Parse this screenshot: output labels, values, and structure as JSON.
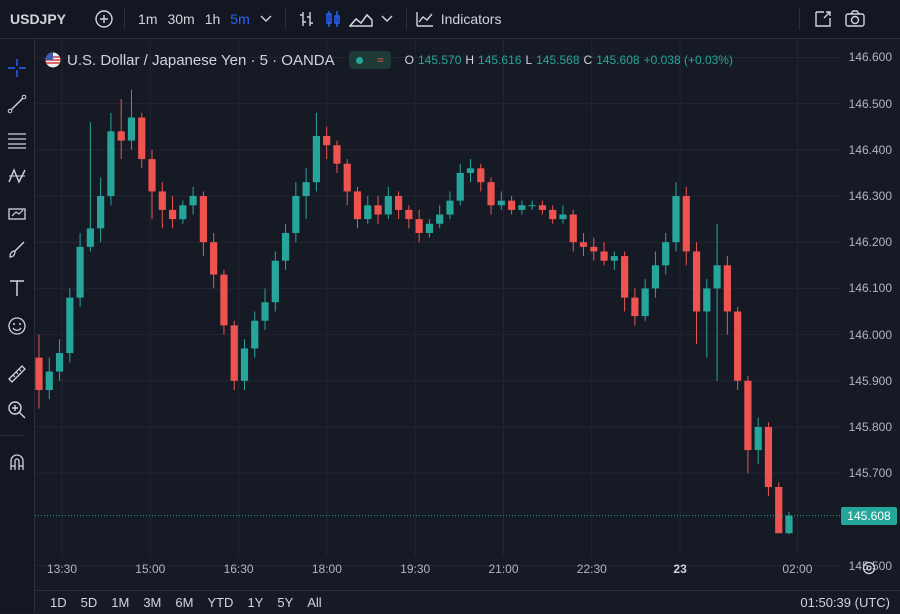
{
  "toolbar": {
    "symbol": "USDJPY",
    "intervals": [
      {
        "label": "1m",
        "active": false
      },
      {
        "label": "30m",
        "active": false
      },
      {
        "label": "1h",
        "active": false
      },
      {
        "label": "5m",
        "active": true
      }
    ],
    "indicators_label": "Indicators"
  },
  "legend": {
    "title": "U.S. Dollar / Japanese Yen · 5 · OANDA",
    "o_label": "O",
    "o_value": "145.570",
    "h_label": "H",
    "h_value": "145.616",
    "l_label": "L",
    "l_value": "145.568",
    "c_label": "C",
    "c_value": "145.608",
    "change": "+0.038 (+0.03%)"
  },
  "price_axis": {
    "ticks": [
      "146.600",
      "146.500",
      "146.400",
      "146.300",
      "146.200",
      "146.100",
      "146.000",
      "145.900",
      "145.800",
      "145.700",
      "145.500"
    ],
    "current_price": "145.608"
  },
  "time_axis": {
    "ticks": [
      {
        "label": "13:30",
        "bold": false
      },
      {
        "label": "15:00",
        "bold": false
      },
      {
        "label": "16:30",
        "bold": false
      },
      {
        "label": "18:00",
        "bold": false
      },
      {
        "label": "19:30",
        "bold": false
      },
      {
        "label": "21:00",
        "bold": false
      },
      {
        "label": "22:30",
        "bold": false
      },
      {
        "label": "23",
        "bold": true
      },
      {
        "label": "02:00",
        "bold": false
      }
    ]
  },
  "bottom": {
    "ranges": [
      "1D",
      "5D",
      "1M",
      "3M",
      "6M",
      "YTD",
      "1Y",
      "5Y",
      "All"
    ],
    "clock": "01:50:39 (UTC)"
  },
  "colors": {
    "up": "#26a69a",
    "down": "#ef5350",
    "grid": "#232632",
    "accent": "#2962ff"
  },
  "icons": {
    "toolbar": [
      "search-icon",
      "add-symbol-icon",
      "bar-style-icon",
      "candle-style-icon",
      "area-style-icon",
      "chevron-down-icon",
      "indicators-icon",
      "fullscreen-icon",
      "camera-icon"
    ],
    "left": [
      "crosshair-icon",
      "trendline-icon",
      "fib-icon",
      "pattern-icon",
      "projection-icon",
      "brush-icon",
      "text-icon",
      "emoji-icon",
      "ruler-icon",
      "zoom-icon",
      "magnet-icon"
    ]
  },
  "chart_data": {
    "type": "candlestick",
    "symbol": "USDJPY",
    "interval": "5",
    "y_range": [
      145.46,
      146.64
    ],
    "series": [
      {
        "o": 145.95,
        "h": 146.0,
        "l": 145.84,
        "c": 145.88
      },
      {
        "o": 145.88,
        "h": 145.95,
        "l": 145.86,
        "c": 145.92
      },
      {
        "o": 145.92,
        "h": 145.99,
        "l": 145.9,
        "c": 145.96
      },
      {
        "o": 145.96,
        "h": 146.1,
        "l": 145.94,
        "c": 146.08
      },
      {
        "o": 146.08,
        "h": 146.22,
        "l": 146.06,
        "c": 146.19
      },
      {
        "o": 146.19,
        "h": 146.46,
        "l": 146.18,
        "c": 146.23
      },
      {
        "o": 146.23,
        "h": 146.34,
        "l": 146.2,
        "c": 146.3
      },
      {
        "o": 146.3,
        "h": 146.48,
        "l": 146.28,
        "c": 146.44
      },
      {
        "o": 146.44,
        "h": 146.51,
        "l": 146.38,
        "c": 146.42
      },
      {
        "o": 146.42,
        "h": 146.53,
        "l": 146.4,
        "c": 146.47
      },
      {
        "o": 146.47,
        "h": 146.48,
        "l": 146.36,
        "c": 146.38
      },
      {
        "o": 146.38,
        "h": 146.4,
        "l": 146.25,
        "c": 146.31
      },
      {
        "o": 146.31,
        "h": 146.33,
        "l": 146.23,
        "c": 146.27
      },
      {
        "o": 146.27,
        "h": 146.3,
        "l": 146.23,
        "c": 146.25
      },
      {
        "o": 146.25,
        "h": 146.29,
        "l": 146.24,
        "c": 146.28
      },
      {
        "o": 146.28,
        "h": 146.32,
        "l": 146.26,
        "c": 146.3
      },
      {
        "o": 146.3,
        "h": 146.31,
        "l": 146.17,
        "c": 146.2
      },
      {
        "o": 146.2,
        "h": 146.22,
        "l": 146.1,
        "c": 146.13
      },
      {
        "o": 146.13,
        "h": 146.14,
        "l": 146.0,
        "c": 146.02
      },
      {
        "o": 146.02,
        "h": 146.03,
        "l": 145.88,
        "c": 145.9
      },
      {
        "o": 145.9,
        "h": 145.99,
        "l": 145.88,
        "c": 145.97
      },
      {
        "o": 145.97,
        "h": 146.05,
        "l": 145.95,
        "c": 146.03
      },
      {
        "o": 146.03,
        "h": 146.1,
        "l": 146.01,
        "c": 146.07
      },
      {
        "o": 146.07,
        "h": 146.18,
        "l": 146.05,
        "c": 146.16
      },
      {
        "o": 146.16,
        "h": 146.24,
        "l": 146.14,
        "c": 146.22
      },
      {
        "o": 146.22,
        "h": 146.33,
        "l": 146.2,
        "c": 146.3
      },
      {
        "o": 146.3,
        "h": 146.36,
        "l": 146.25,
        "c": 146.33
      },
      {
        "o": 146.33,
        "h": 146.48,
        "l": 146.31,
        "c": 146.43
      },
      {
        "o": 146.43,
        "h": 146.45,
        "l": 146.38,
        "c": 146.41
      },
      {
        "o": 146.41,
        "h": 146.42,
        "l": 146.35,
        "c": 146.37
      },
      {
        "o": 146.37,
        "h": 146.38,
        "l": 146.28,
        "c": 146.31
      },
      {
        "o": 146.31,
        "h": 146.32,
        "l": 146.23,
        "c": 146.25
      },
      {
        "o": 146.25,
        "h": 146.3,
        "l": 146.24,
        "c": 146.28
      },
      {
        "o": 146.28,
        "h": 146.3,
        "l": 146.24,
        "c": 146.26
      },
      {
        "o": 146.26,
        "h": 146.32,
        "l": 146.25,
        "c": 146.3
      },
      {
        "o": 146.3,
        "h": 146.31,
        "l": 146.25,
        "c": 146.27
      },
      {
        "o": 146.27,
        "h": 146.28,
        "l": 146.23,
        "c": 146.25
      },
      {
        "o": 146.25,
        "h": 146.27,
        "l": 146.2,
        "c": 146.22
      },
      {
        "o": 146.22,
        "h": 146.25,
        "l": 146.21,
        "c": 146.24
      },
      {
        "o": 146.24,
        "h": 146.28,
        "l": 146.23,
        "c": 146.26
      },
      {
        "o": 146.26,
        "h": 146.31,
        "l": 146.25,
        "c": 146.29
      },
      {
        "o": 146.29,
        "h": 146.37,
        "l": 146.28,
        "c": 146.35
      },
      {
        "o": 146.35,
        "h": 146.38,
        "l": 146.33,
        "c": 146.36
      },
      {
        "o": 146.36,
        "h": 146.37,
        "l": 146.31,
        "c": 146.33
      },
      {
        "o": 146.33,
        "h": 146.34,
        "l": 146.26,
        "c": 146.28
      },
      {
        "o": 146.28,
        "h": 146.31,
        "l": 146.27,
        "c": 146.29
      },
      {
        "o": 146.29,
        "h": 146.3,
        "l": 146.26,
        "c": 146.27
      },
      {
        "o": 146.27,
        "h": 146.29,
        "l": 146.26,
        "c": 146.28
      },
      {
        "o": 146.28,
        "h": 146.29,
        "l": 146.27,
        "c": 146.28
      },
      {
        "o": 146.28,
        "h": 146.29,
        "l": 146.26,
        "c": 146.27
      },
      {
        "o": 146.27,
        "h": 146.28,
        "l": 146.24,
        "c": 146.25
      },
      {
        "o": 146.25,
        "h": 146.28,
        "l": 146.24,
        "c": 146.26
      },
      {
        "o": 146.26,
        "h": 146.27,
        "l": 146.18,
        "c": 146.2
      },
      {
        "o": 146.2,
        "h": 146.22,
        "l": 146.17,
        "c": 146.19
      },
      {
        "o": 146.19,
        "h": 146.21,
        "l": 146.16,
        "c": 146.18
      },
      {
        "o": 146.18,
        "h": 146.2,
        "l": 146.15,
        "c": 146.16
      },
      {
        "o": 146.16,
        "h": 146.18,
        "l": 146.14,
        "c": 146.17
      },
      {
        "o": 146.17,
        "h": 146.18,
        "l": 146.05,
        "c": 146.08
      },
      {
        "o": 146.08,
        "h": 146.1,
        "l": 146.02,
        "c": 146.04
      },
      {
        "o": 146.04,
        "h": 146.12,
        "l": 146.03,
        "c": 146.1
      },
      {
        "o": 146.1,
        "h": 146.18,
        "l": 146.08,
        "c": 146.15
      },
      {
        "o": 146.15,
        "h": 146.22,
        "l": 146.13,
        "c": 146.2
      },
      {
        "o": 146.2,
        "h": 146.33,
        "l": 146.18,
        "c": 146.3
      },
      {
        "o": 146.3,
        "h": 146.32,
        "l": 146.15,
        "c": 146.18
      },
      {
        "o": 146.18,
        "h": 146.2,
        "l": 145.98,
        "c": 146.05
      },
      {
        "o": 146.05,
        "h": 146.12,
        "l": 145.95,
        "c": 146.1
      },
      {
        "o": 146.1,
        "h": 146.24,
        "l": 145.9,
        "c": 146.15
      },
      {
        "o": 146.15,
        "h": 146.17,
        "l": 146.0,
        "c": 146.05
      },
      {
        "o": 146.05,
        "h": 146.06,
        "l": 145.88,
        "c": 145.9
      },
      {
        "o": 145.9,
        "h": 145.91,
        "l": 145.7,
        "c": 145.75
      },
      {
        "o": 145.75,
        "h": 145.82,
        "l": 145.72,
        "c": 145.8
      },
      {
        "o": 145.8,
        "h": 145.81,
        "l": 145.65,
        "c": 145.67
      },
      {
        "o": 145.67,
        "h": 145.68,
        "l": 145.57,
        "c": 145.57
      },
      {
        "o": 145.57,
        "h": 145.616,
        "l": 145.568,
        "c": 145.608
      }
    ]
  }
}
